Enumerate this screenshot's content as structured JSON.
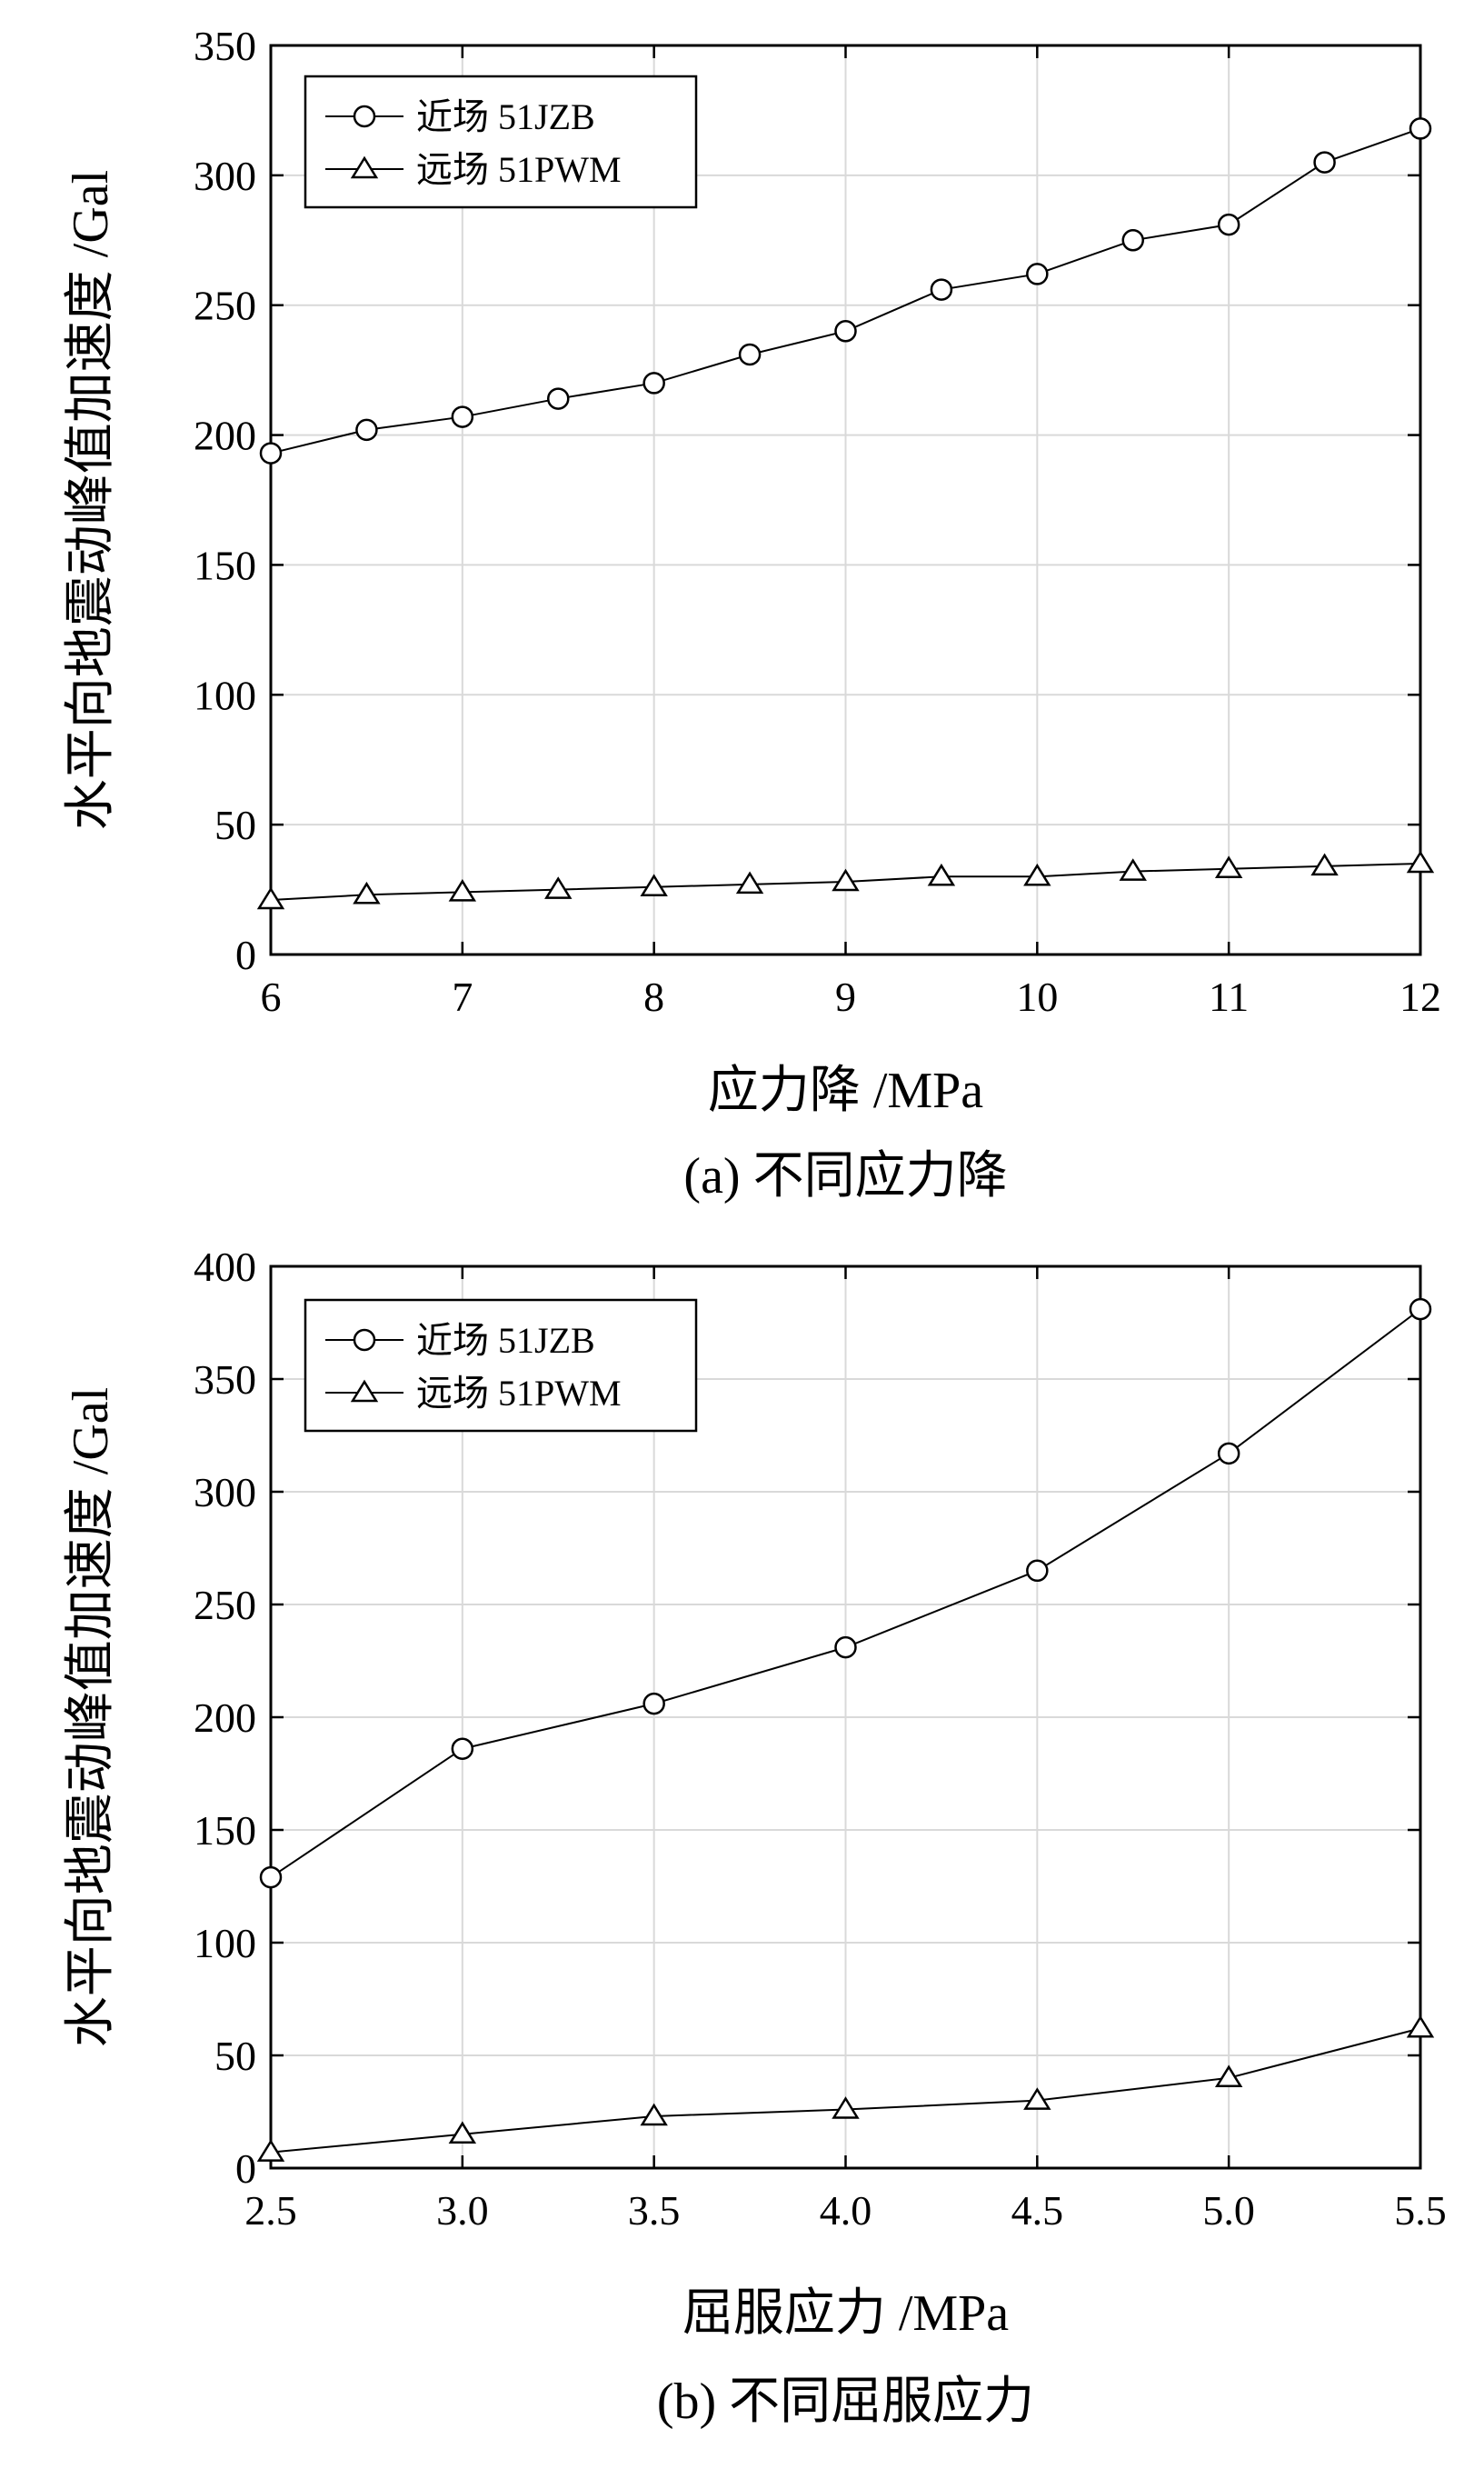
{
  "chart_data": [
    {
      "type": "line",
      "caption": "(a) 不同应力降",
      "xlabel": "应力降 /MPa",
      "ylabel": "水平向地震动峰值加速度 /Gal",
      "xlim": [
        6,
        12
      ],
      "ylim": [
        0,
        350
      ],
      "xticks": [
        6,
        7,
        8,
        9,
        10,
        11,
        12
      ],
      "xtick_labels": [
        "6",
        "7",
        "8",
        "9",
        "10",
        "11",
        "12"
      ],
      "yticks": [
        0,
        50,
        100,
        150,
        200,
        250,
        300,
        350
      ],
      "ytick_labels": [
        "0",
        "50",
        "100",
        "150",
        "200",
        "250",
        "300",
        "350"
      ],
      "grid": true,
      "legend_position": "top-left",
      "x": [
        6,
        6.5,
        7,
        7.5,
        8,
        8.5,
        9,
        9.5,
        10,
        10.5,
        11,
        11.5,
        12
      ],
      "series": [
        {
          "name": "近场 51JZB",
          "marker": "circle",
          "values": [
            193,
            202,
            207,
            214,
            220,
            231,
            240,
            256,
            262,
            275,
            281,
            305,
            318
          ]
        },
        {
          "name": "远场 51PWM",
          "marker": "triangle",
          "values": [
            21,
            23,
            24,
            25,
            26,
            27,
            28,
            30,
            30,
            32,
            33,
            34,
            35
          ]
        }
      ]
    },
    {
      "type": "line",
      "caption": "(b) 不同屈服应力",
      "xlabel": "屈服应力 /MPa",
      "ylabel": "水平向地震动峰值加速度 /Gal",
      "xlim": [
        2.5,
        5.5
      ],
      "ylim": [
        0,
        400
      ],
      "xticks": [
        2.5,
        3.0,
        3.5,
        4.0,
        4.5,
        5.0,
        5.5
      ],
      "xtick_labels": [
        "2.5",
        "3.0",
        "3.5",
        "4.0",
        "4.5",
        "5.0",
        "5.5"
      ],
      "yticks": [
        0,
        50,
        100,
        150,
        200,
        250,
        300,
        350,
        400
      ],
      "ytick_labels": [
        "0",
        "50",
        "100",
        "150",
        "200",
        "250",
        "300",
        "350",
        "400"
      ],
      "grid": true,
      "legend_position": "top-left",
      "x": [
        2.5,
        3.0,
        3.5,
        4.0,
        4.5,
        5.0,
        5.5
      ],
      "series": [
        {
          "name": "近场 51JZB",
          "marker": "circle",
          "values": [
            129,
            186,
            206,
            231,
            265,
            317,
            381
          ]
        },
        {
          "name": "远场 51PWM",
          "marker": "triangle",
          "values": [
            7,
            15,
            23,
            26,
            30,
            40,
            62
          ]
        }
      ]
    }
  ]
}
